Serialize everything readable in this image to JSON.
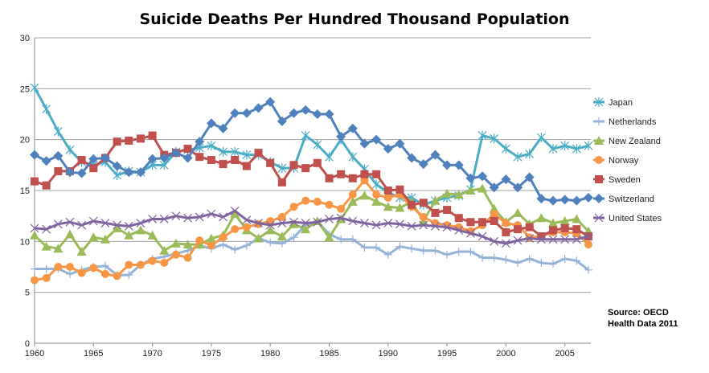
{
  "chart_data": {
    "type": "line",
    "title": "Suicide Deaths Per Hundred Thousand Population",
    "xlabel": "",
    "ylabel": "",
    "xlim": [
      1960,
      2007
    ],
    "ylim": [
      0,
      30
    ],
    "x_ticks": [
      1960,
      1965,
      1970,
      1975,
      1980,
      1985,
      1990,
      1995,
      2000,
      2005
    ],
    "y_ticks": [
      0,
      5,
      10,
      15,
      20,
      25,
      30
    ],
    "grid": true,
    "legend": "right",
    "annotation": [
      "Source: OECD",
      "Health Data 2011"
    ],
    "x_start": 1960,
    "series": [
      {
        "name": "Japan",
        "color": "#4BACC6",
        "marker": "asterisk",
        "values": [
          25.1,
          23,
          20.8,
          19,
          17.8,
          17.5,
          17.8,
          16.5,
          16.9,
          16.8,
          17.5,
          17.5,
          18.8,
          19.0,
          19.2,
          19.4,
          18.8,
          18.8,
          18.5,
          18.5,
          17.8,
          17.2,
          17.2,
          20.4,
          19.5,
          18.3,
          20.0,
          18.3,
          17.1,
          15.6,
          14.8,
          14.3,
          14.3,
          13.6,
          14.0,
          14.3,
          14.5,
          15.1,
          20.4,
          20.1,
          19.1,
          18.3,
          18.6,
          20.2,
          19.1,
          19.4,
          19.1,
          19.4
        ]
      },
      {
        "name": "Netherlands",
        "color": "#95B3D7",
        "marker": "plus",
        "values": [
          7.3,
          7.3,
          7.3,
          6.8,
          7.2,
          7.5,
          7.6,
          6.7,
          6.7,
          7.7,
          8.3,
          8.5,
          8.8,
          9.1,
          9.6,
          9.3,
          9.7,
          9.2,
          9.6,
          10.3,
          9.9,
          9.8,
          10.4,
          11.6,
          12.0,
          10.7,
          10.2,
          10.2,
          9.4,
          9.4,
          8.7,
          9.5,
          9.3,
          9.1,
          9.1,
          8.7,
          9.0,
          9.0,
          8.4,
          8.4,
          8.2,
          7.9,
          8.3,
          7.9,
          7.8,
          8.3,
          8.1,
          7.2
        ]
      },
      {
        "name": "New Zealand",
        "color": "#9BBB59",
        "marker": "triangle",
        "values": [
          10.6,
          9.5,
          9.3,
          10.7,
          9.0,
          10.4,
          10.2,
          11.3,
          10.6,
          11.1,
          10.6,
          9.1,
          9.8,
          9.7,
          9.7,
          10.3,
          10.6,
          12.7,
          11.1,
          10.3,
          11.1,
          10.5,
          11.7,
          11.2,
          12.0,
          10.4,
          12.2,
          13.9,
          14.5,
          13.9,
          13.4,
          13.3,
          13.9,
          12.0,
          14.0,
          14.7,
          14.6,
          15.0,
          15.2,
          13.2,
          11.9,
          12.8,
          11.7,
          12.3,
          11.8,
          12.0,
          12.2,
          11.0
        ]
      },
      {
        "name": "Norway",
        "color": "#F79646",
        "marker": "circle",
        "values": [
          6.2,
          6.4,
          7.5,
          7.5,
          6.9,
          7.4,
          6.8,
          6.6,
          7.7,
          7.7,
          8.1,
          7.9,
          8.7,
          8.4,
          10.1,
          9.6,
          10.4,
          11.2,
          11.4,
          11.7,
          12.0,
          12.4,
          13.4,
          14.0,
          13.9,
          13.6,
          13.2,
          14.6,
          16.0,
          14.6,
          14.3,
          14.6,
          13.4,
          12.4,
          11.8,
          11.6,
          11.4,
          11.0,
          11.6,
          12.7,
          11.8,
          11.6,
          10.4,
          10.5,
          10.9,
          10.9,
          10.8,
          9.7
        ]
      },
      {
        "name": "Sweden",
        "color": "#C0504D",
        "marker": "square",
        "values": [
          15.9,
          15.5,
          16.9,
          16.9,
          18.0,
          17.2,
          18.2,
          19.8,
          19.9,
          20.1,
          20.4,
          18.5,
          18.7,
          19.1,
          18.3,
          18.0,
          17.6,
          18.0,
          17.4,
          18.7,
          17.7,
          15.8,
          17.5,
          17.2,
          17.7,
          16.2,
          16.6,
          16.2,
          16.6,
          16.6,
          15.0,
          15.1,
          13.6,
          13.8,
          12.8,
          13.1,
          12.3,
          11.9,
          11.9,
          12.0,
          10.9,
          11.2,
          11.4,
          10.5,
          11.1,
          11.3,
          11.2,
          10.5
        ]
      },
      {
        "name": "Switzerland",
        "color": "#4F81BD",
        "marker": "diamond",
        "values": [
          18.5,
          17.9,
          18.4,
          16.8,
          16.7,
          18.1,
          18.2,
          17.4,
          16.8,
          16.8,
          18.1,
          18.2,
          18.7,
          18.2,
          19.8,
          21.6,
          21.1,
          22.6,
          22.6,
          23.1,
          23.7,
          21.8,
          22.6,
          22.9,
          22.5,
          22.5,
          20.3,
          21.1,
          19.6,
          20.0,
          19.1,
          19.6,
          18.2,
          17.6,
          18.5,
          17.5,
          17.5,
          16.2,
          16.4,
          15.3,
          16.1,
          15.3,
          16.3,
          14.2,
          14.0,
          14.1,
          14.0,
          14.3
        ]
      },
      {
        "name": "United States",
        "color": "#8064A2",
        "marker": "x",
        "values": [
          11.3,
          11.2,
          11.7,
          11.9,
          11.6,
          12.0,
          11.8,
          11.6,
          11.5,
          11.8,
          12.2,
          12.2,
          12.5,
          12.3,
          12.4,
          12.7,
          12.4,
          13.0,
          12.1,
          11.8,
          11.6,
          11.8,
          11.9,
          11.8,
          11.9,
          12.2,
          12.3,
          12.0,
          11.8,
          11.6,
          11.8,
          11.7,
          11.5,
          11.6,
          11.5,
          11.4,
          11.1,
          10.8,
          10.5,
          10.0,
          9.8,
          10.1,
          10.3,
          10.2,
          10.2,
          10.2,
          10.2,
          10.5
        ]
      }
    ]
  }
}
